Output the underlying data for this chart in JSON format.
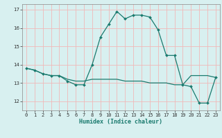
{
  "xlabel": "Humidex (Indice chaleur)",
  "line1_x": [
    0,
    1,
    2,
    3,
    4,
    5,
    6,
    7,
    8,
    9,
    10,
    11,
    12,
    13,
    14,
    15,
    16,
    17,
    18,
    19,
    20,
    21,
    22,
    23
  ],
  "line1_y": [
    13.8,
    13.7,
    13.5,
    13.4,
    13.4,
    13.1,
    12.9,
    12.9,
    14.0,
    15.5,
    16.2,
    16.9,
    16.5,
    16.7,
    16.7,
    16.6,
    15.9,
    14.5,
    14.5,
    12.9,
    12.8,
    11.9,
    11.9,
    13.3
  ],
  "line2_x": [
    0,
    1,
    2,
    3,
    4,
    5,
    6,
    7,
    8,
    9,
    10,
    11,
    12,
    13,
    14,
    15,
    16,
    17,
    18,
    19,
    20,
    21,
    22,
    23
  ],
  "line2_y": [
    13.8,
    13.7,
    13.5,
    13.4,
    13.4,
    13.2,
    13.1,
    13.1,
    13.2,
    13.2,
    13.2,
    13.2,
    13.1,
    13.1,
    13.1,
    13.0,
    13.0,
    13.0,
    12.9,
    12.9,
    13.4,
    13.4,
    13.4,
    13.3
  ],
  "line_color": "#1a7a6e",
  "bg_color": "#d8f0f0",
  "grid_color": "#f0b8b8",
  "ylim": [
    11.5,
    17.3
  ],
  "xlim": [
    -0.5,
    23.5
  ],
  "yticks": [
    12,
    13,
    14,
    15,
    16,
    17
  ],
  "xticks": [
    0,
    1,
    2,
    3,
    4,
    5,
    6,
    7,
    8,
    9,
    10,
    11,
    12,
    13,
    14,
    15,
    16,
    17,
    18,
    19,
    20,
    21,
    22,
    23
  ]
}
